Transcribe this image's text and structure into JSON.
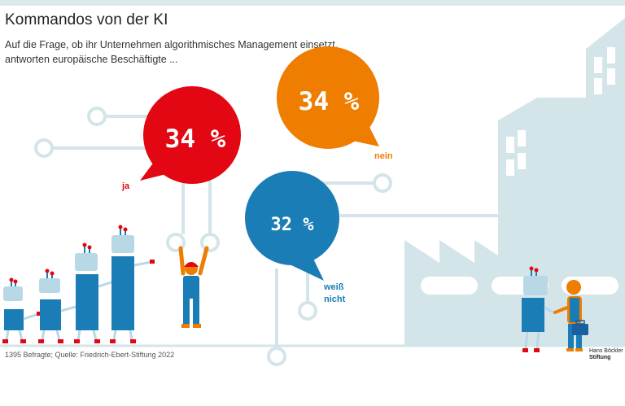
{
  "header": {
    "title": "Kommandos von der KI",
    "subtitle": "Auf die Frage, ob ihr Unternehmen algorithmisches Management einsetzt, antworten europäische Beschäftigte ..."
  },
  "chart_data": {
    "type": "pie",
    "title": "Kommandos von der KI",
    "subtitle": "Auf die Frage, ob ihr Unternehmen algorithmisches Management einsetzt, antworten europäische Beschäftigte ...",
    "categories": [
      "ja",
      "nein",
      "weiß nicht"
    ],
    "values": [
      34,
      34,
      32
    ],
    "value_labels": [
      "34 %",
      "34 %",
      "32 %"
    ],
    "category_labels": [
      [
        "ja"
      ],
      [
        "nein"
      ],
      [
        "weiß",
        "nicht"
      ]
    ],
    "colors": [
      "#e30613",
      "#ee7d00",
      "#1a7db5"
    ]
  },
  "footer": {
    "source": "1395 Befragte; Quelle: Friedrich-Ebert-Stiftung 2022",
    "logo_line1": "Hans Böckler",
    "logo_line2": "Stiftung"
  },
  "colors": {
    "illustration_light": "#d4e5ea",
    "robot_blue": "#1a7db5",
    "robot_head": "#b9d8e6",
    "accent_red": "#e30613",
    "accent_orange": "#ee7d00"
  }
}
